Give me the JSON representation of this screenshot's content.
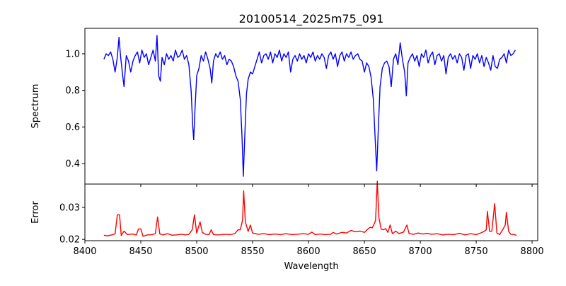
{
  "chart_data": [
    {
      "type": "line",
      "title": "20100514_2025m75_091",
      "xlabel": "",
      "ylabel": "Spectrum",
      "xlim": [
        8400,
        8805
      ],
      "ylim": [
        0.288,
        1.139
      ],
      "xticks": [
        8400,
        8450,
        8500,
        8550,
        8600,
        8650,
        8700,
        8750,
        8800
      ],
      "yticks": [
        0.4,
        0.6,
        0.8,
        1.0
      ],
      "ytick_labels": [
        "0.4",
        "0.6",
        "0.8",
        "1.0"
      ],
      "color": "#0000ff",
      "points": [
        [
          8417,
          0.97
        ],
        [
          8419,
          1.0
        ],
        [
          8421,
          0.99
        ],
        [
          8423,
          1.01
        ],
        [
          8425,
          0.97
        ],
        [
          8427,
          0.9
        ],
        [
          8429,
          0.98
        ],
        [
          8430.5,
          1.09
        ],
        [
          8432,
          0.98
        ],
        [
          8434,
          0.87
        ],
        [
          8435,
          0.82
        ],
        [
          8437,
          0.99
        ],
        [
          8439,
          0.96
        ],
        [
          8441,
          0.9
        ],
        [
          8443,
          0.96
        ],
        [
          8445,
          0.99
        ],
        [
          8447,
          1.01
        ],
        [
          8449,
          0.95
        ],
        [
          8451,
          1.02
        ],
        [
          8453,
          0.98
        ],
        [
          8455,
          1.0
        ],
        [
          8457,
          0.94
        ],
        [
          8459,
          0.98
        ],
        [
          8461,
          1.02
        ],
        [
          8463,
          0.96
        ],
        [
          8464.5,
          1.1
        ],
        [
          8466,
          0.88
        ],
        [
          8467.5,
          0.85
        ],
        [
          8469,
          0.98
        ],
        [
          8471,
          0.94
        ],
        [
          8473,
          1.0
        ],
        [
          8475,
          0.97
        ],
        [
          8477,
          0.99
        ],
        [
          8479,
          0.96
        ],
        [
          8481,
          1.02
        ],
        [
          8483,
          0.98
        ],
        [
          8485,
          0.99
        ],
        [
          8487,
          1.02
        ],
        [
          8489,
          0.97
        ],
        [
          8491,
          0.99
        ],
        [
          8493,
          0.94
        ],
        [
          8495,
          0.8
        ],
        [
          8496.5,
          0.6
        ],
        [
          8497.3,
          0.53
        ],
        [
          8498.5,
          0.7
        ],
        [
          8500,
          0.88
        ],
        [
          8502,
          0.92
        ],
        [
          8504,
          0.99
        ],
        [
          8506,
          0.96
        ],
        [
          8508,
          1.01
        ],
        [
          8510,
          0.97
        ],
        [
          8512,
          0.92
        ],
        [
          8513.5,
          0.84
        ],
        [
          8515,
          0.96
        ],
        [
          8517,
          1.0
        ],
        [
          8519,
          0.98
        ],
        [
          8521,
          1.01
        ],
        [
          8523,
          0.97
        ],
        [
          8525,
          0.99
        ],
        [
          8527,
          0.94
        ],
        [
          8529,
          0.97
        ],
        [
          8531,
          0.96
        ],
        [
          8533,
          0.93
        ],
        [
          8535,
          0.88
        ],
        [
          8537,
          0.85
        ],
        [
          8539,
          0.75
        ],
        [
          8540.5,
          0.55
        ],
        [
          8541.7,
          0.33
        ],
        [
          8543,
          0.55
        ],
        [
          8544.5,
          0.78
        ],
        [
          8546,
          0.86
        ],
        [
          8548,
          0.9
        ],
        [
          8550,
          0.89
        ],
        [
          8552,
          0.93
        ],
        [
          8554,
          0.97
        ],
        [
          8556,
          1.01
        ],
        [
          8558,
          0.95
        ],
        [
          8560,
          0.99
        ],
        [
          8562,
          1.0
        ],
        [
          8564,
          0.97
        ],
        [
          8566,
          1.01
        ],
        [
          8568,
          0.95
        ],
        [
          8570,
          1.0
        ],
        [
          8572,
          0.98
        ],
        [
          8574,
          1.02
        ],
        [
          8576,
          0.96
        ],
        [
          8578,
          1.0
        ],
        [
          8580,
          0.98
        ],
        [
          8582,
          1.01
        ],
        [
          8584,
          0.9
        ],
        [
          8586,
          0.97
        ],
        [
          8588,
          0.99
        ],
        [
          8590,
          0.96
        ],
        [
          8592,
          1.0
        ],
        [
          8594,
          0.97
        ],
        [
          8596,
          0.99
        ],
        [
          8598,
          0.95
        ],
        [
          8600,
          1.0
        ],
        [
          8602,
          0.98
        ],
        [
          8604,
          1.01
        ],
        [
          8606,
          0.96
        ],
        [
          8608,
          0.99
        ],
        [
          8610,
          0.97
        ],
        [
          8612,
          1.0
        ],
        [
          8614,
          0.98
        ],
        [
          8616,
          0.92
        ],
        [
          8618,
          0.99
        ],
        [
          8620,
          1.01
        ],
        [
          8622,
          0.97
        ],
        [
          8624,
          1.0
        ],
        [
          8626,
          0.93
        ],
        [
          8628,
          0.99
        ],
        [
          8630,
          1.01
        ],
        [
          8632,
          0.96
        ],
        [
          8634,
          1.0
        ],
        [
          8636,
          0.98
        ],
        [
          8638,
          1.01
        ],
        [
          8640,
          0.97
        ],
        [
          8642,
          0.99
        ],
        [
          8644,
          1.0
        ],
        [
          8646,
          0.97
        ],
        [
          8648,
          0.96
        ],
        [
          8650,
          0.9
        ],
        [
          8652,
          0.95
        ],
        [
          8654,
          0.93
        ],
        [
          8656,
          0.87
        ],
        [
          8658,
          0.75
        ],
        [
          8659.5,
          0.55
        ],
        [
          8661,
          0.36
        ],
        [
          8662.5,
          0.6
        ],
        [
          8664,
          0.82
        ],
        [
          8666,
          0.92
        ],
        [
          8668,
          0.95
        ],
        [
          8670,
          0.96
        ],
        [
          8672,
          0.93
        ],
        [
          8674,
          0.82
        ],
        [
          8676,
          0.97
        ],
        [
          8678,
          1.0
        ],
        [
          8680,
          0.94
        ],
        [
          8682,
          1.06
        ],
        [
          8684,
          0.97
        ],
        [
          8686,
          0.9
        ],
        [
          8687.5,
          0.77
        ],
        [
          8689,
          0.95
        ],
        [
          8691,
          0.98
        ],
        [
          8693,
          1.0
        ],
        [
          8695,
          0.96
        ],
        [
          8697,
          0.99
        ],
        [
          8699,
          0.93
        ],
        [
          8701,
          1.0
        ],
        [
          8703,
          0.98
        ],
        [
          8705,
          1.02
        ],
        [
          8707,
          0.95
        ],
        [
          8709,
          0.99
        ],
        [
          8711,
          1.01
        ],
        [
          8713,
          0.94
        ],
        [
          8715,
          0.99
        ],
        [
          8717,
          1.0
        ],
        [
          8719,
          0.96
        ],
        [
          8721,
          0.99
        ],
        [
          8723,
          0.89
        ],
        [
          8725,
          0.98
        ],
        [
          8727,
          1.0
        ],
        [
          8729,
          0.97
        ],
        [
          8731,
          0.99
        ],
        [
          8733,
          0.95
        ],
        [
          8735,
          1.0
        ],
        [
          8737,
          0.98
        ],
        [
          8739,
          0.91
        ],
        [
          8741,
          0.99
        ],
        [
          8743,
          1.0
        ],
        [
          8745,
          0.92
        ],
        [
          8747,
          0.99
        ],
        [
          8749,
          0.97
        ],
        [
          8751,
          1.0
        ],
        [
          8753,
          0.95
        ],
        [
          8755,
          0.99
        ],
        [
          8757,
          0.93
        ],
        [
          8759,
          0.98
        ],
        [
          8761,
          0.95
        ],
        [
          8763,
          0.91
        ],
        [
          8765,
          0.99
        ],
        [
          8767,
          0.93
        ],
        [
          8769,
          0.92
        ],
        [
          8771,
          0.97
        ],
        [
          8773,
          0.98
        ],
        [
          8775,
          1.0
        ],
        [
          8777,
          0.95
        ],
        [
          8779,
          1.02
        ],
        [
          8781,
          0.99
        ],
        [
          8783,
          1.0
        ],
        [
          8785,
          1.02
        ]
      ]
    },
    {
      "type": "line",
      "title": "",
      "xlabel": "Wavelength",
      "ylabel": "Error",
      "xlim": [
        8400,
        8805
      ],
      "ylim": [
        0.0196,
        0.0373
      ],
      "xticks": [
        8400,
        8450,
        8500,
        8550,
        8600,
        8650,
        8700,
        8750,
        8800
      ],
      "xtick_labels": [
        "8400",
        "8450",
        "8500",
        "8550",
        "8600",
        "8650",
        "8700",
        "8750",
        "8800"
      ],
      "yticks": [
        0.02,
        0.03
      ],
      "ytick_labels": [
        "0.02",
        "0.03"
      ],
      "color": "#ff0000",
      "points": [
        [
          8417,
          0.0213
        ],
        [
          8420,
          0.0211
        ],
        [
          8424,
          0.0214
        ],
        [
          8427,
          0.0217
        ],
        [
          8429,
          0.0277
        ],
        [
          8431,
          0.0277
        ],
        [
          8432.5,
          0.0212
        ],
        [
          8435,
          0.0226
        ],
        [
          8438,
          0.0215
        ],
        [
          8442,
          0.0217
        ],
        [
          8446,
          0.0214
        ],
        [
          8448,
          0.0233
        ],
        [
          8450,
          0.0233
        ],
        [
          8452,
          0.021
        ],
        [
          8456,
          0.0214
        ],
        [
          8460,
          0.0215
        ],
        [
          8463,
          0.0218
        ],
        [
          8465,
          0.027
        ],
        [
          8467,
          0.0217
        ],
        [
          8470,
          0.0214
        ],
        [
          8474,
          0.0218
        ],
        [
          8478,
          0.0213
        ],
        [
          8482,
          0.0214
        ],
        [
          8486,
          0.0216
        ],
        [
          8490,
          0.0214
        ],
        [
          8493,
          0.0216
        ],
        [
          8496,
          0.023
        ],
        [
          8498,
          0.0277
        ],
        [
          8500,
          0.022
        ],
        [
          8503,
          0.0255
        ],
        [
          8505,
          0.0222
        ],
        [
          8508,
          0.0216
        ],
        [
          8511,
          0.0215
        ],
        [
          8513,
          0.023
        ],
        [
          8515,
          0.0215
        ],
        [
          8520,
          0.0214
        ],
        [
          8525,
          0.0216
        ],
        [
          8530,
          0.0215
        ],
        [
          8534,
          0.0218
        ],
        [
          8537,
          0.023
        ],
        [
          8539,
          0.023
        ],
        [
          8541,
          0.026
        ],
        [
          8542,
          0.0352
        ],
        [
          8543.5,
          0.0255
        ],
        [
          8546,
          0.0225
        ],
        [
          8548,
          0.0245
        ],
        [
          8550,
          0.022
        ],
        [
          8555,
          0.0216
        ],
        [
          8560,
          0.0218
        ],
        [
          8565,
          0.0215
        ],
        [
          8570,
          0.0217
        ],
        [
          8575,
          0.0215
        ],
        [
          8580,
          0.0218
        ],
        [
          8585,
          0.0215
        ],
        [
          8590,
          0.0216
        ],
        [
          8595,
          0.0218
        ],
        [
          8600,
          0.0216
        ],
        [
          8603,
          0.0223
        ],
        [
          8606,
          0.0215
        ],
        [
          8610,
          0.0217
        ],
        [
          8615,
          0.0215
        ],
        [
          8620,
          0.0216
        ],
        [
          8622,
          0.0222
        ],
        [
          8625,
          0.0217
        ],
        [
          8630,
          0.0222
        ],
        [
          8634,
          0.022
        ],
        [
          8638,
          0.0228
        ],
        [
          8642,
          0.0224
        ],
        [
          8646,
          0.0226
        ],
        [
          8650,
          0.0222
        ],
        [
          8653,
          0.0232
        ],
        [
          8655,
          0.0238
        ],
        [
          8657,
          0.0236
        ],
        [
          8659,
          0.025
        ],
        [
          8660,
          0.026
        ],
        [
          8661.5,
          0.0382
        ],
        [
          8663,
          0.0268
        ],
        [
          8665,
          0.0232
        ],
        [
          8667,
          0.023
        ],
        [
          8669,
          0.0234
        ],
        [
          8671,
          0.0222
        ],
        [
          8673,
          0.0245
        ],
        [
          8675,
          0.0218
        ],
        [
          8678,
          0.0226
        ],
        [
          8681,
          0.0218
        ],
        [
          8685,
          0.0223
        ],
        [
          8688,
          0.0245
        ],
        [
          8690,
          0.0218
        ],
        [
          8694,
          0.0216
        ],
        [
          8698,
          0.022
        ],
        [
          8702,
          0.0217
        ],
        [
          8706,
          0.0219
        ],
        [
          8710,
          0.0216
        ],
        [
          8715,
          0.0218
        ],
        [
          8720,
          0.0214
        ],
        [
          8725,
          0.0216
        ],
        [
          8730,
          0.0215
        ],
        [
          8735,
          0.0219
        ],
        [
          8740,
          0.0214
        ],
        [
          8745,
          0.0218
        ],
        [
          8750,
          0.0215
        ],
        [
          8754,
          0.022
        ],
        [
          8757,
          0.0225
        ],
        [
          8759,
          0.023
        ],
        [
          8760,
          0.0288
        ],
        [
          8762,
          0.0225
        ],
        [
          8764,
          0.0226
        ],
        [
          8766.5,
          0.0312
        ],
        [
          8768.5,
          0.022
        ],
        [
          8771,
          0.0215
        ],
        [
          8774,
          0.0232
        ],
        [
          8776,
          0.0245
        ],
        [
          8777,
          0.0285
        ],
        [
          8779,
          0.0225
        ],
        [
          8781,
          0.0216
        ],
        [
          8784,
          0.0215
        ],
        [
          8786,
          0.0213
        ]
      ]
    }
  ]
}
